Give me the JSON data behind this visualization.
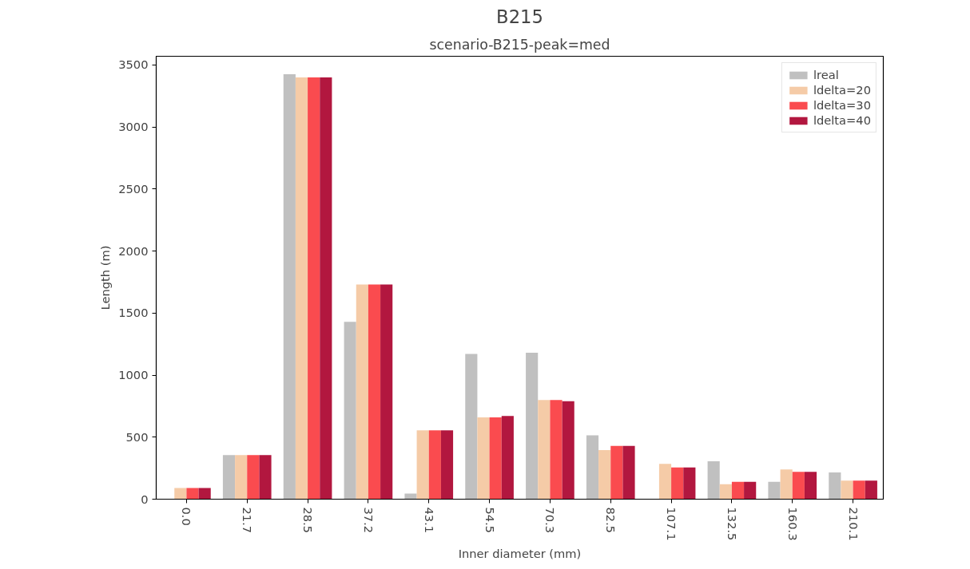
{
  "chart_data": {
    "type": "bar",
    "title": "B215",
    "subtitle": "scenario-B215-peak=med",
    "xlabel": "Inner diameter (mm)",
    "ylabel": "Length (m)",
    "categories": [
      "0.0",
      "21.7",
      "28.5",
      "37.2",
      "43.1",
      "54.5",
      "70.3",
      "82.5",
      "107.1",
      "132.5",
      "160.3",
      "210.1"
    ],
    "series": [
      {
        "name": "lreal",
        "color": "#c0c0c0",
        "values": [
          0,
          355,
          3425,
          1430,
          45,
          1170,
          1180,
          515,
          0,
          305,
          140,
          215
        ]
      },
      {
        "name": "ldelta=20",
        "color": "#f5cba7",
        "values": [
          90,
          355,
          3400,
          1730,
          555,
          660,
          800,
          395,
          285,
          120,
          240,
          150
        ]
      },
      {
        "name": "ldelta=30",
        "color": "#fa4b4f",
        "values": [
          90,
          355,
          3400,
          1730,
          555,
          660,
          800,
          430,
          255,
          140,
          220,
          150
        ]
      },
      {
        "name": "ldelta=40",
        "color": "#b2173f",
        "values": [
          90,
          355,
          3400,
          1730,
          555,
          670,
          790,
          430,
          255,
          140,
          220,
          150
        ]
      }
    ],
    "ylim": [
      0,
      3570
    ],
    "yticks": [
      0,
      500,
      1000,
      1500,
      2000,
      2500,
      3000,
      3500
    ],
    "grid": false,
    "legend": "top right"
  }
}
